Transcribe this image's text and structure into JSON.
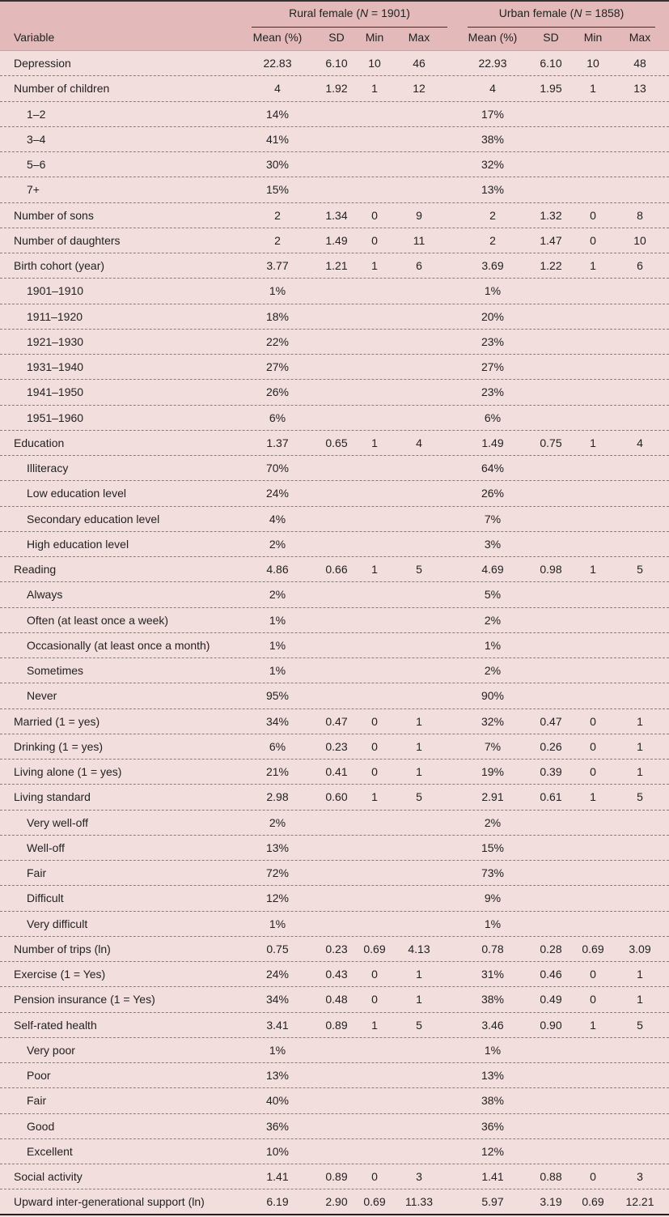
{
  "header": {
    "variable": "Variable",
    "groups": [
      {
        "prefix": "Rural female (",
        "italic": "N",
        "suffix": " = 1901)"
      },
      {
        "prefix": "Urban female (",
        "italic": "N",
        "suffix": " = 1858)"
      }
    ],
    "columns": [
      "Mean (%)",
      "SD",
      "Min",
      "Max",
      "Mean (%)",
      "SD",
      "Min",
      "Max"
    ]
  },
  "rows": [
    {
      "label": "Depression",
      "sub": false,
      "v": [
        "22.83",
        "6.10",
        "10",
        "46",
        "22.93",
        "6.10",
        "10",
        "48"
      ]
    },
    {
      "label": "Number of children",
      "sub": false,
      "v": [
        "4",
        "1.92",
        "1",
        "12",
        "4",
        "1.95",
        "1",
        "13"
      ]
    },
    {
      "label": "1–2",
      "sub": true,
      "v": [
        "14%",
        "",
        "",
        "",
        "17%",
        "",
        "",
        ""
      ]
    },
    {
      "label": "3–4",
      "sub": true,
      "v": [
        "41%",
        "",
        "",
        "",
        "38%",
        "",
        "",
        ""
      ]
    },
    {
      "label": "5–6",
      "sub": true,
      "v": [
        "30%",
        "",
        "",
        "",
        "32%",
        "",
        "",
        ""
      ]
    },
    {
      "label": "7+",
      "sub": true,
      "v": [
        "15%",
        "",
        "",
        "",
        "13%",
        "",
        "",
        ""
      ]
    },
    {
      "label": "Number of sons",
      "sub": false,
      "v": [
        "2",
        "1.34",
        "0",
        "9",
        "2",
        "1.32",
        "0",
        "8"
      ]
    },
    {
      "label": "Number of daughters",
      "sub": false,
      "v": [
        "2",
        "1.49",
        "0",
        "11",
        "2",
        "1.47",
        "0",
        "10"
      ]
    },
    {
      "label": "Birth cohort (year)",
      "sub": false,
      "v": [
        "3.77",
        "1.21",
        "1",
        "6",
        "3.69",
        "1.22",
        "1",
        "6"
      ]
    },
    {
      "label": "1901–1910",
      "sub": true,
      "v": [
        "1%",
        "",
        "",
        "",
        "1%",
        "",
        "",
        ""
      ]
    },
    {
      "label": "1911–1920",
      "sub": true,
      "v": [
        "18%",
        "",
        "",
        "",
        "20%",
        "",
        "",
        ""
      ]
    },
    {
      "label": "1921–1930",
      "sub": true,
      "v": [
        "22%",
        "",
        "",
        "",
        "23%",
        "",
        "",
        ""
      ]
    },
    {
      "label": "1931–1940",
      "sub": true,
      "v": [
        "27%",
        "",
        "",
        "",
        "27%",
        "",
        "",
        ""
      ]
    },
    {
      "label": "1941–1950",
      "sub": true,
      "v": [
        "26%",
        "",
        "",
        "",
        "23%",
        "",
        "",
        ""
      ]
    },
    {
      "label": "1951–1960",
      "sub": true,
      "v": [
        "6%",
        "",
        "",
        "",
        "6%",
        "",
        "",
        ""
      ]
    },
    {
      "label": "Education",
      "sub": false,
      "v": [
        "1.37",
        "0.65",
        "1",
        "4",
        "1.49",
        "0.75",
        "1",
        "4"
      ]
    },
    {
      "label": "Illiteracy",
      "sub": true,
      "v": [
        "70%",
        "",
        "",
        "",
        "64%",
        "",
        "",
        ""
      ]
    },
    {
      "label": "Low education level",
      "sub": true,
      "v": [
        "24%",
        "",
        "",
        "",
        "26%",
        "",
        "",
        ""
      ]
    },
    {
      "label": "Secondary education level",
      "sub": true,
      "v": [
        "4%",
        "",
        "",
        "",
        "7%",
        "",
        "",
        ""
      ]
    },
    {
      "label": "High education level",
      "sub": true,
      "v": [
        "2%",
        "",
        "",
        "",
        "3%",
        "",
        "",
        ""
      ]
    },
    {
      "label": "Reading",
      "sub": false,
      "v": [
        "4.86",
        "0.66",
        "1",
        "5",
        "4.69",
        "0.98",
        "1",
        "5"
      ]
    },
    {
      "label": "Always",
      "sub": true,
      "v": [
        "2%",
        "",
        "",
        "",
        "5%",
        "",
        "",
        ""
      ]
    },
    {
      "label": "Often (at least once a week)",
      "sub": true,
      "v": [
        "1%",
        "",
        "",
        "",
        "2%",
        "",
        "",
        ""
      ]
    },
    {
      "label": "Occasionally (at least once a month)",
      "sub": true,
      "v": [
        "1%",
        "",
        "",
        "",
        "1%",
        "",
        "",
        ""
      ]
    },
    {
      "label": "Sometimes",
      "sub": true,
      "v": [
        "1%",
        "",
        "",
        "",
        "2%",
        "",
        "",
        ""
      ]
    },
    {
      "label": "Never",
      "sub": true,
      "v": [
        "95%",
        "",
        "",
        "",
        "90%",
        "",
        "",
        ""
      ]
    },
    {
      "label": "Married (1 = yes)",
      "sub": false,
      "v": [
        "34%",
        "0.47",
        "0",
        "1",
        "32%",
        "0.47",
        "0",
        "1"
      ]
    },
    {
      "label": "Drinking (1 = yes)",
      "sub": false,
      "v": [
        "6%",
        "0.23",
        "0",
        "1",
        "7%",
        "0.26",
        "0",
        "1"
      ]
    },
    {
      "label": "Living alone (1 = yes)",
      "sub": false,
      "v": [
        "21%",
        "0.41",
        "0",
        "1",
        "19%",
        "0.39",
        "0",
        "1"
      ]
    },
    {
      "label": "Living standard",
      "sub": false,
      "v": [
        "2.98",
        "0.60",
        "1",
        "5",
        "2.91",
        "0.61",
        "1",
        "5"
      ]
    },
    {
      "label": "Very well-off",
      "sub": true,
      "v": [
        "2%",
        "",
        "",
        "",
        "2%",
        "",
        "",
        ""
      ]
    },
    {
      "label": "Well-off",
      "sub": true,
      "v": [
        "13%",
        "",
        "",
        "",
        "15%",
        "",
        "",
        ""
      ]
    },
    {
      "label": "Fair",
      "sub": true,
      "v": [
        "72%",
        "",
        "",
        "",
        "73%",
        "",
        "",
        ""
      ]
    },
    {
      "label": "Difficult",
      "sub": true,
      "v": [
        "12%",
        "",
        "",
        "",
        "9%",
        "",
        "",
        ""
      ]
    },
    {
      "label": "Very difficult",
      "sub": true,
      "v": [
        "1%",
        "",
        "",
        "",
        "1%",
        "",
        "",
        ""
      ]
    },
    {
      "label": "Number of trips (ln)",
      "sub": false,
      "v": [
        "0.75",
        "0.23",
        "0.69",
        "4.13",
        "0.78",
        "0.28",
        "0.69",
        "3.09"
      ]
    },
    {
      "label": "Exercise (1 = Yes)",
      "sub": false,
      "v": [
        "24%",
        "0.43",
        "0",
        "1",
        "31%",
        "0.46",
        "0",
        "1"
      ]
    },
    {
      "label": "Pension insurance (1 = Yes)",
      "sub": false,
      "v": [
        "34%",
        "0.48",
        "0",
        "1",
        "38%",
        "0.49",
        "0",
        "1"
      ]
    },
    {
      "label": "Self-rated health",
      "sub": false,
      "v": [
        "3.41",
        "0.89",
        "1",
        "5",
        "3.46",
        "0.90",
        "1",
        "5"
      ]
    },
    {
      "label": "Very poor",
      "sub": true,
      "v": [
        "1%",
        "",
        "",
        "",
        "1%",
        "",
        "",
        ""
      ]
    },
    {
      "label": "Poor",
      "sub": true,
      "v": [
        "13%",
        "",
        "",
        "",
        "13%",
        "",
        "",
        ""
      ]
    },
    {
      "label": "Fair",
      "sub": true,
      "v": [
        "40%",
        "",
        "",
        "",
        "38%",
        "",
        "",
        ""
      ]
    },
    {
      "label": "Good",
      "sub": true,
      "v": [
        "36%",
        "",
        "",
        "",
        "36%",
        "",
        "",
        ""
      ]
    },
    {
      "label": "Excellent",
      "sub": true,
      "v": [
        "10%",
        "",
        "",
        "",
        "12%",
        "",
        "",
        ""
      ]
    },
    {
      "label": "Social activity",
      "sub": false,
      "v": [
        "1.41",
        "0.89",
        "0",
        "3",
        "1.41",
        "0.88",
        "0",
        "3"
      ]
    },
    {
      "label": "Upward inter-generational support (ln)",
      "sub": false,
      "v": [
        "6.19",
        "2.90",
        "0.69",
        "11.33",
        "5.97",
        "3.19",
        "0.69",
        "12.21"
      ]
    }
  ]
}
